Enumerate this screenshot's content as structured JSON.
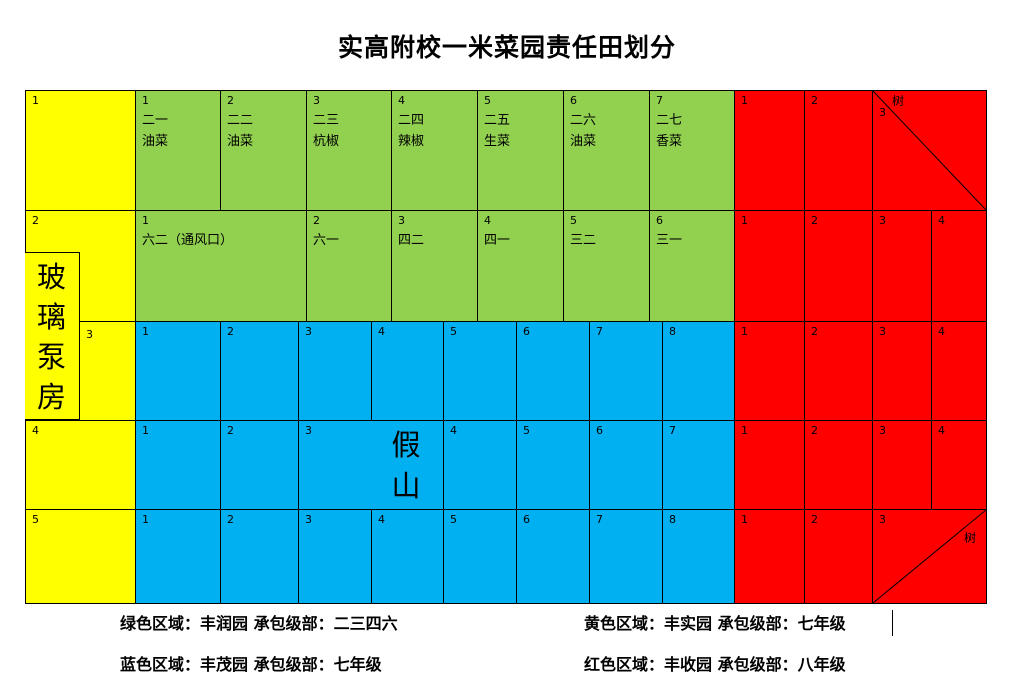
{
  "title": "实高附校一米菜园责任田划分",
  "yellow": {
    "rows": [
      {
        "num": "1"
      },
      {
        "num": "2"
      },
      {
        "num": "3"
      },
      {
        "num": "4"
      },
      {
        "num": "5"
      }
    ],
    "pump_house": [
      "玻",
      "璃",
      "泵",
      "房"
    ]
  },
  "green": {
    "row1": [
      {
        "num": "1",
        "class_name": "二一",
        "crop": "油菜"
      },
      {
        "num": "2",
        "class_name": "二二",
        "crop": "油菜"
      },
      {
        "num": "3",
        "class_name": "二三",
        "crop": "杭椒"
      },
      {
        "num": "4",
        "class_name": "二四",
        "crop": "辣椒"
      },
      {
        "num": "5",
        "class_name": "二五",
        "crop": "生菜"
      },
      {
        "num": "6",
        "class_name": "二六",
        "crop": "油菜"
      },
      {
        "num": "7",
        "class_name": "二七",
        "crop": "香菜"
      }
    ],
    "row2": [
      {
        "num": "1",
        "class_name": "六二（通风口）"
      },
      {
        "num": "2",
        "class_name": "六一"
      },
      {
        "num": "3",
        "class_name": "四二"
      },
      {
        "num": "4",
        "class_name": "四一"
      },
      {
        "num": "5",
        "class_name": "三二"
      },
      {
        "num": "6",
        "class_name": "三一"
      }
    ]
  },
  "blue": {
    "row1": [
      "1",
      "2",
      "3",
      "4",
      "5",
      "6",
      "7",
      "8"
    ],
    "row2": [
      "1",
      "2",
      "3",
      "4",
      "5",
      "6",
      "7"
    ],
    "row3": [
      "1",
      "2",
      "3",
      "4",
      "5",
      "6",
      "7",
      "8"
    ],
    "rockery": [
      "假",
      "山"
    ]
  },
  "red": {
    "row1": [
      "1",
      "2",
      "3"
    ],
    "row2": [
      "1",
      "2",
      "3",
      "4"
    ],
    "row3": [
      "1",
      "2",
      "3",
      "4"
    ],
    "row4": [
      "1",
      "2",
      "3",
      "4"
    ],
    "row5": [
      "1",
      "2",
      "3"
    ],
    "tree_label": "树"
  },
  "legend": {
    "green": "绿色区域：丰润园  承包级部：二三四六",
    "yellow": "黄色区域：丰实园  承包级部：七年级",
    "blue": "蓝色区域：丰茂园  承包级部：七年级",
    "red": "红色区域：丰收园  承包级部：八年级"
  },
  "colors": {
    "yellow": "#ffff00",
    "green": "#92d050",
    "blue": "#00b0f0",
    "red": "#ff0000"
  }
}
